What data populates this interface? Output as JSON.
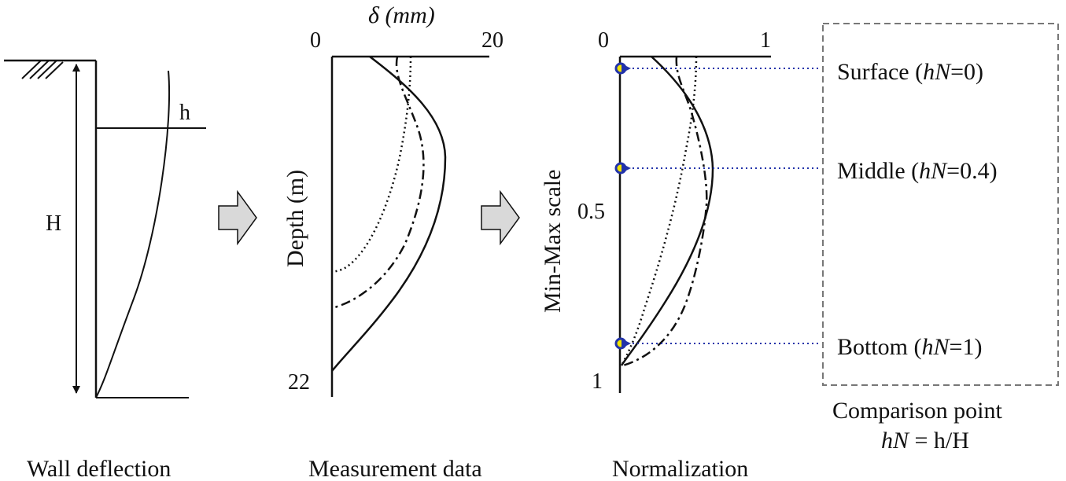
{
  "panels": {
    "wall": {
      "caption": "Wall deflection",
      "height_label": "H",
      "depth_label": "h"
    },
    "measurement": {
      "caption": "Measurement data",
      "x_axis_label": "δ (mm)",
      "x_tick_min": "0",
      "x_tick_max": "20",
      "y_axis_label": "Depth (m)",
      "y_tick_max": "22"
    },
    "normalization": {
      "caption": "Normalization",
      "x_tick_min": "0",
      "x_tick_max": "1",
      "y_axis_label": "Min-Max scale",
      "y_tick_mid": "0.5",
      "y_tick_max": "1"
    },
    "comparison": {
      "caption_line1": "Comparison point",
      "caption_line2_prefix": "hN",
      "caption_line2_suffix": " = h/H",
      "points": [
        {
          "name": "Surface",
          "hn_prefix": "Surface (",
          "hn_var": "hN",
          "hn_value": "=0)",
          "hN": 0
        },
        {
          "name": "Middle",
          "hn_prefix": "Middle (",
          "hn_var": "hN",
          "hn_value": "=0.4)",
          "hN": 0.4
        },
        {
          "name": "Bottom",
          "hn_prefix": "Bottom (",
          "hn_var": "hN",
          "hn_value": "=1)",
          "hN": 1
        }
      ]
    }
  },
  "colors": {
    "line": "#111111",
    "arrow_fill": "#d9d9d9",
    "marker_fill": "#f2e600",
    "marker_stroke": "#2233aa",
    "dotted_link": "#2233aa",
    "box_border": "#777777"
  }
}
